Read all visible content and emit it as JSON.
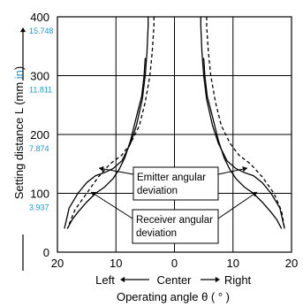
{
  "chart_data": {
    "type": "line",
    "xlabel": "Operating angle θ ( ° )",
    "xlabel_sub": {
      "left": "Left",
      "center": "Center",
      "right": "Right"
    },
    "ylabel_parts": {
      "pre": "Setting distance L (mm ",
      "in": "in",
      "post": ")"
    },
    "xlim": [
      -20,
      20
    ],
    "ylim": [
      0,
      400
    ],
    "x_ticks": [
      {
        "value": -20,
        "label": "20"
      },
      {
        "value": -10,
        "label": "10"
      },
      {
        "value": 0,
        "label": "0"
      },
      {
        "value": 10,
        "label": "10"
      },
      {
        "value": 20,
        "label": "20"
      }
    ],
    "y_ticks": [
      {
        "value": 0,
        "label": "0",
        "inch": ""
      },
      {
        "value": 100,
        "label": "100",
        "inch": "3.937"
      },
      {
        "value": 200,
        "label": "200",
        "inch": "7.874"
      },
      {
        "value": 300,
        "label": "300",
        "inch": "11.811"
      },
      {
        "value": 400,
        "label": "400",
        "inch": "15.748"
      }
    ],
    "grid": true,
    "colors": {
      "inch_labels": "#1a9ad6",
      "lines": "#000000"
    },
    "series": [
      {
        "key": "emitter_right",
        "style": "solid",
        "points": [
          [
            4.5,
            400
          ],
          [
            4.5,
            385
          ],
          [
            4.7,
            340
          ],
          [
            5.0,
            300
          ],
          [
            5.5,
            260
          ],
          [
            6.5,
            215
          ],
          [
            7.5,
            185
          ],
          [
            9.0,
            155
          ],
          [
            10.5,
            142
          ],
          [
            12.0,
            135
          ],
          [
            13.5,
            130
          ],
          [
            15.0,
            118
          ],
          [
            16.5,
            100
          ],
          [
            18.0,
            75
          ],
          [
            18.8,
            40
          ]
        ]
      },
      {
        "key": "receiver_right",
        "style": "solid",
        "points": [
          [
            5.0,
            330
          ],
          [
            5.2,
            300
          ],
          [
            5.6,
            265
          ],
          [
            6.5,
            230
          ],
          [
            7.5,
            190
          ],
          [
            8.5,
            160
          ],
          [
            9.5,
            140
          ],
          [
            10.5,
            125
          ],
          [
            12.0,
            110
          ],
          [
            13.5,
            100
          ],
          [
            15.0,
            85
          ],
          [
            16.5,
            68
          ],
          [
            17.5,
            55
          ],
          [
            18.3,
            40
          ]
        ]
      },
      {
        "key": "dashed_right",
        "style": "dashed",
        "points": [
          [
            5.5,
            400
          ],
          [
            5.5,
            385
          ],
          [
            5.8,
            340
          ],
          [
            6.2,
            300
          ],
          [
            7.0,
            255
          ],
          [
            8.0,
            215
          ],
          [
            9.5,
            185
          ],
          [
            11.0,
            165
          ],
          [
            13.0,
            150
          ],
          [
            15.0,
            128
          ],
          [
            17.0,
            100
          ],
          [
            18.3,
            70
          ],
          [
            18.8,
            40
          ]
        ]
      },
      {
        "key": "emitter_left",
        "style": "solid",
        "points": [
          [
            -4.5,
            400
          ],
          [
            -4.5,
            385
          ],
          [
            -4.7,
            340
          ],
          [
            -5.0,
            300
          ],
          [
            -5.5,
            260
          ],
          [
            -6.5,
            215
          ],
          [
            -7.5,
            185
          ],
          [
            -9.0,
            155
          ],
          [
            -10.5,
            142
          ],
          [
            -12.0,
            135
          ],
          [
            -13.5,
            130
          ],
          [
            -15.0,
            118
          ],
          [
            -16.5,
            100
          ],
          [
            -18.0,
            75
          ],
          [
            -18.8,
            40
          ]
        ]
      },
      {
        "key": "receiver_left",
        "style": "solid",
        "points": [
          [
            -5.0,
            330
          ],
          [
            -5.2,
            300
          ],
          [
            -5.6,
            265
          ],
          [
            -6.5,
            230
          ],
          [
            -7.5,
            190
          ],
          [
            -8.5,
            160
          ],
          [
            -9.5,
            140
          ],
          [
            -10.5,
            125
          ],
          [
            -12.0,
            110
          ],
          [
            -13.5,
            100
          ],
          [
            -15.0,
            85
          ],
          [
            -16.5,
            68
          ],
          [
            -17.5,
            55
          ],
          [
            -18.3,
            40
          ]
        ]
      },
      {
        "key": "dashed_left",
        "style": "dashed",
        "points": [
          [
            -3.5,
            400
          ],
          [
            -3.5,
            385
          ],
          [
            -3.8,
            340
          ],
          [
            -4.2,
            300
          ],
          [
            -5.0,
            255
          ],
          [
            -6.0,
            215
          ],
          [
            -7.5,
            185
          ],
          [
            -9.0,
            165
          ],
          [
            -11.0,
            150
          ],
          [
            -13.0,
            128
          ],
          [
            -15.0,
            100
          ],
          [
            -17.0,
            72
          ],
          [
            -18.3,
            40
          ]
        ]
      }
    ],
    "annotations": [
      {
        "key": "emitter",
        "lines": [
          "Emitter angular",
          "deviation"
        ]
      },
      {
        "key": "receiver",
        "lines": [
          "Receiver angular",
          "deviation"
        ]
      }
    ]
  }
}
